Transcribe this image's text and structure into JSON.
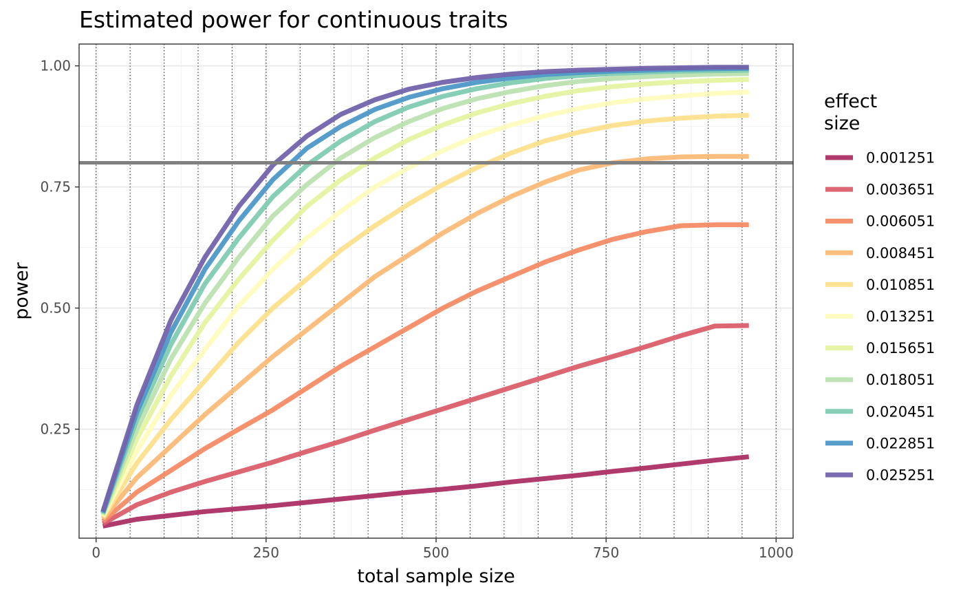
{
  "chart_data": {
    "type": "line",
    "title": "Estimated power for continuous traits",
    "xlabel": "total sample size",
    "ylabel": "power",
    "xlim": [
      -25,
      1025
    ],
    "ylim": [
      0.025,
      1.045
    ],
    "x_ticks": [
      {
        "value": 0,
        "label": "0"
      },
      {
        "value": 250,
        "label": "250"
      },
      {
        "value": 500,
        "label": "500"
      },
      {
        "value": 750,
        "label": "750"
      },
      {
        "value": 1000,
        "label": "1000"
      }
    ],
    "y_ticks": [
      {
        "value": 0.25,
        "label": "0.25"
      },
      {
        "value": 0.5,
        "label": "0.50"
      },
      {
        "value": 0.75,
        "label": "0.75"
      },
      {
        "value": 1.0,
        "label": "1.00"
      }
    ],
    "minor_x_grid": [
      125,
      375,
      625,
      875
    ],
    "minor_y_grid": [
      0.125,
      0.375,
      0.625,
      0.875
    ],
    "dotted_vlines": [
      0,
      50,
      100,
      150,
      200,
      250,
      300,
      350,
      400,
      450,
      500,
      550,
      600,
      650,
      700,
      750,
      800,
      850,
      900,
      950,
      1000
    ],
    "hline": {
      "value": 0.8,
      "color": "#808080"
    },
    "grid": true,
    "legend": {
      "title_lines": [
        "effect",
        "size"
      ],
      "placement": "right"
    },
    "x": [
      10,
      60,
      110,
      160,
      210,
      260,
      310,
      360,
      410,
      460,
      510,
      560,
      610,
      660,
      710,
      760,
      810,
      860,
      910,
      960
    ],
    "series": [
      {
        "name": "0.001251",
        "color": "#ac2f64",
        "values": [
          0.05,
          0.064,
          0.072,
          0.08,
          0.086,
          0.092,
          0.099,
          0.106,
          0.113,
          0.12,
          0.126,
          0.133,
          0.141,
          0.148,
          0.155,
          0.163,
          0.17,
          0.178,
          0.186,
          0.193
        ]
      },
      {
        "name": "0.003651",
        "color": "#db5e6c",
        "values": [
          0.055,
          0.094,
          0.12,
          0.142,
          0.162,
          0.182,
          0.204,
          0.225,
          0.248,
          0.27,
          0.292,
          0.314,
          0.336,
          0.358,
          0.38,
          0.4,
          0.421,
          0.443,
          0.463,
          0.464
        ]
      },
      {
        "name": "0.006051",
        "color": "#f48b64",
        "values": [
          0.06,
          0.12,
          0.165,
          0.21,
          0.25,
          0.29,
          0.335,
          0.38,
          0.42,
          0.46,
          0.5,
          0.535,
          0.565,
          0.595,
          0.62,
          0.642,
          0.658,
          0.67,
          0.672,
          0.672
        ]
      },
      {
        "name": "0.008451",
        "color": "#fcbb78",
        "values": [
          0.065,
          0.15,
          0.215,
          0.28,
          0.34,
          0.4,
          0.455,
          0.51,
          0.565,
          0.61,
          0.655,
          0.695,
          0.73,
          0.76,
          0.785,
          0.8,
          0.808,
          0.812,
          0.813,
          0.813
        ]
      },
      {
        "name": "0.010851",
        "color": "#fde08e",
        "values": [
          0.068,
          0.18,
          0.27,
          0.35,
          0.43,
          0.5,
          0.56,
          0.62,
          0.67,
          0.715,
          0.755,
          0.79,
          0.82,
          0.845,
          0.863,
          0.877,
          0.886,
          0.892,
          0.896,
          0.898
        ]
      },
      {
        "name": "0.013251",
        "color": "#fefcbe",
        "values": [
          0.07,
          0.205,
          0.32,
          0.415,
          0.505,
          0.58,
          0.645,
          0.7,
          0.75,
          0.79,
          0.825,
          0.855,
          0.878,
          0.897,
          0.912,
          0.924,
          0.932,
          0.938,
          0.943,
          0.946
        ]
      },
      {
        "name": "0.015651",
        "color": "#e4f3a0",
        "values": [
          0.072,
          0.23,
          0.36,
          0.47,
          0.56,
          0.64,
          0.71,
          0.765,
          0.81,
          0.848,
          0.878,
          0.903,
          0.922,
          0.937,
          0.949,
          0.957,
          0.963,
          0.967,
          0.97,
          0.972
        ]
      },
      {
        "name": "0.018051",
        "color": "#bde2b2",
        "values": [
          0.074,
          0.25,
          0.395,
          0.51,
          0.605,
          0.69,
          0.755,
          0.81,
          0.852,
          0.885,
          0.912,
          0.932,
          0.947,
          0.959,
          0.968,
          0.974,
          0.978,
          0.981,
          0.983,
          0.984
        ]
      },
      {
        "name": "0.020451",
        "color": "#7fcbb1",
        "values": [
          0.076,
          0.27,
          0.425,
          0.55,
          0.645,
          0.73,
          0.795,
          0.845,
          0.885,
          0.915,
          0.937,
          0.953,
          0.965,
          0.974,
          0.98,
          0.984,
          0.987,
          0.989,
          0.99,
          0.991
        ]
      },
      {
        "name": "0.022851",
        "color": "#4d98c8",
        "values": [
          0.078,
          0.285,
          0.45,
          0.58,
          0.68,
          0.765,
          0.83,
          0.875,
          0.91,
          0.935,
          0.953,
          0.966,
          0.975,
          0.982,
          0.986,
          0.989,
          0.991,
          0.993,
          0.994,
          0.995
        ]
      },
      {
        "name": "0.025251",
        "color": "#7363ac",
        "values": [
          0.08,
          0.3,
          0.475,
          0.605,
          0.71,
          0.795,
          0.855,
          0.9,
          0.93,
          0.952,
          0.966,
          0.976,
          0.983,
          0.988,
          0.991,
          0.993,
          0.995,
          0.996,
          0.997,
          0.997
        ]
      }
    ]
  }
}
